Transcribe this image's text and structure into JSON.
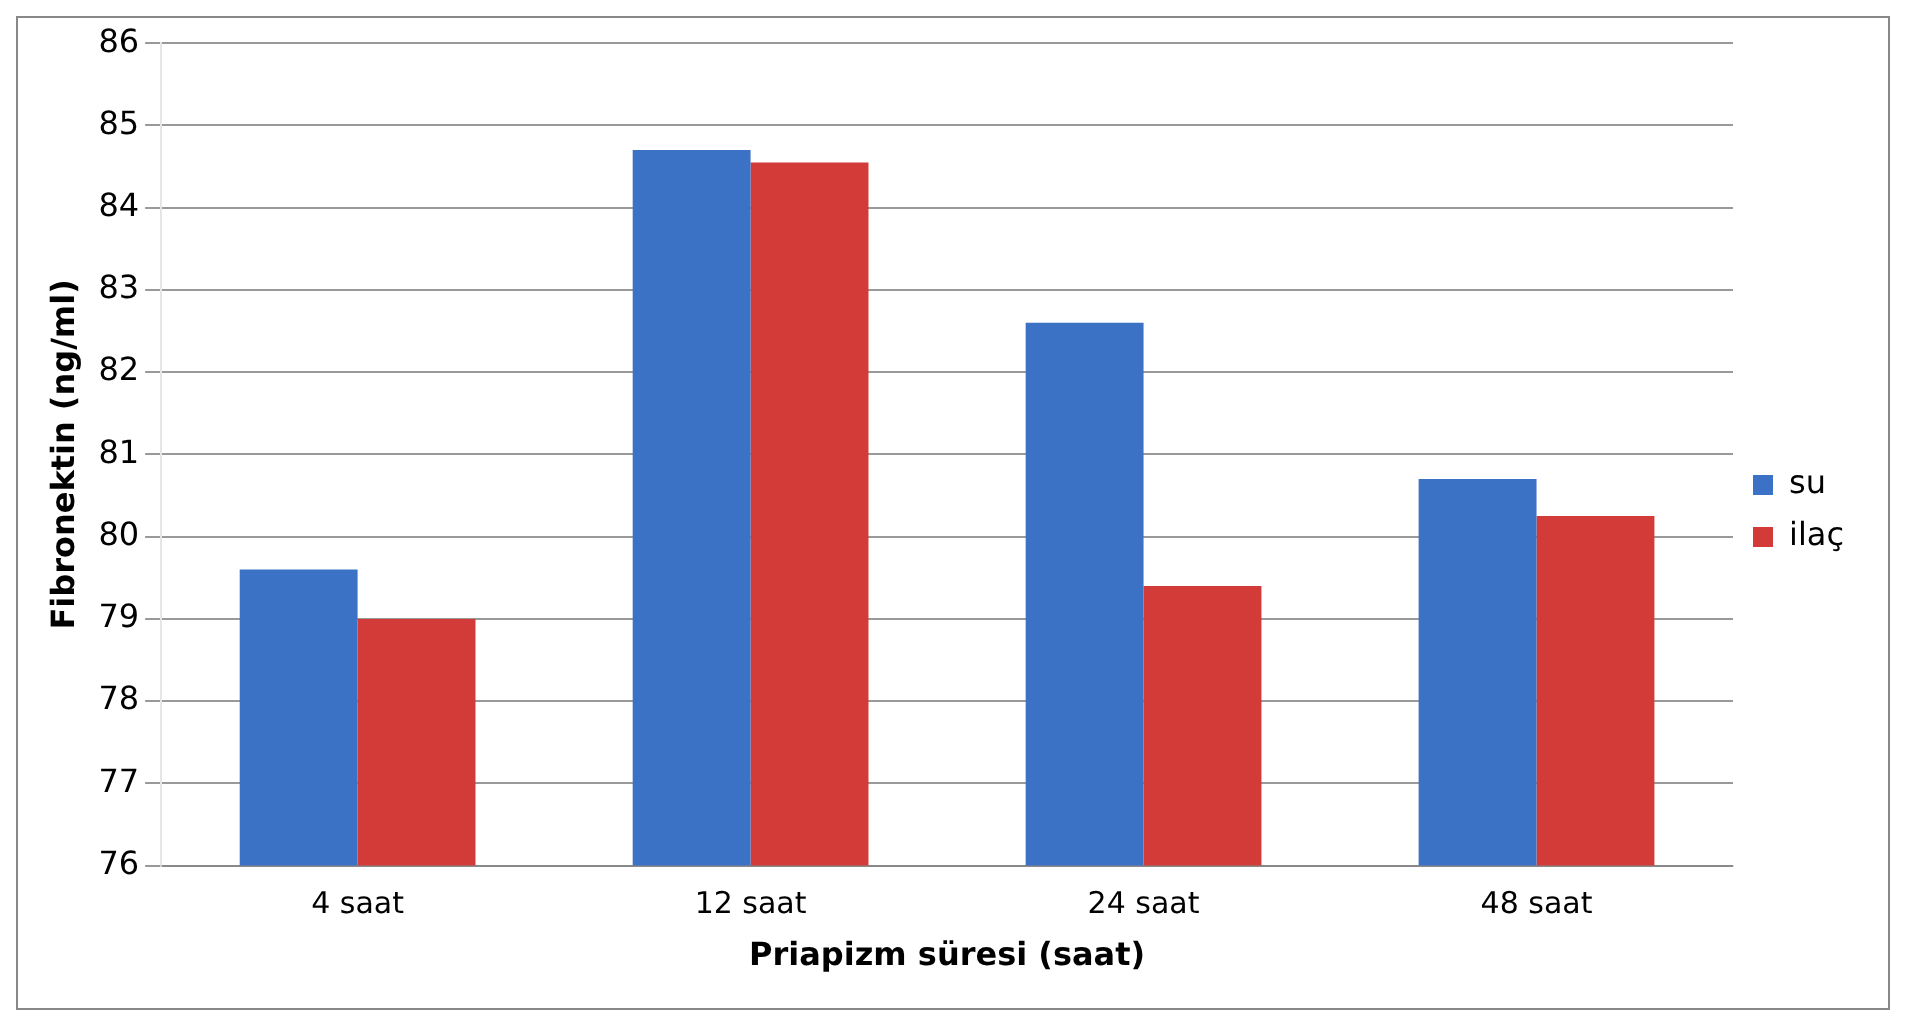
{
  "chart_data": {
    "type": "bar",
    "xlabel": "Priapizm süresi (saat)",
    "ylabel": "Fibronektin (ng/ml)",
    "categories": [
      "4 saat",
      "12 saat",
      "24 saat",
      "48 saat"
    ],
    "series": [
      {
        "name": "su",
        "color": "#3b72c6",
        "values": [
          79.6,
          84.7,
          82.6,
          80.7
        ]
      },
      {
        "name": "ilaç",
        "color": "#d23b38",
        "values": [
          79.0,
          84.55,
          79.4,
          80.25
        ]
      }
    ],
    "ylim": [
      76,
      86
    ],
    "yticks": [
      76,
      77,
      78,
      79,
      80,
      81,
      82,
      83,
      84,
      85,
      86
    ],
    "grid": "y",
    "legend": "right"
  }
}
